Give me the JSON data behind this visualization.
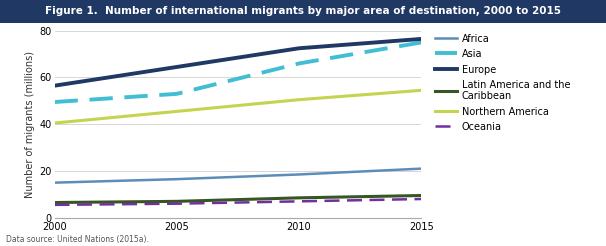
{
  "title": "Figure 1.  Number of international migrants by major area of destination, 2000 to 2015",
  "title_bg_color": "#1F3864",
  "title_text_color": "#FFFFFF",
  "ylabel": "Number of migrants (millions)",
  "footnote": "Data source: United Nations (2015a).",
  "xlim": [
    2000,
    2015
  ],
  "ylim": [
    0,
    80
  ],
  "yticks": [
    0,
    20,
    40,
    60,
    80
  ],
  "xticks": [
    2000,
    2005,
    2010,
    2015
  ],
  "years": [
    2000,
    2005,
    2010,
    2015
  ],
  "series": {
    "Africa": {
      "values": [
        15.0,
        16.5,
        18.5,
        21.0
      ],
      "color": "#5B8DB8",
      "linestyle": "solid",
      "linewidth": 1.8
    },
    "Asia": {
      "values": [
        49.5,
        53.0,
        66.0,
        75.0
      ],
      "color": "#41BED4",
      "linestyle": "dashed",
      "linewidth": 2.8,
      "dashes": [
        6,
        3
      ]
    },
    "Europe": {
      "values": [
        56.5,
        64.5,
        72.5,
        76.5
      ],
      "color": "#1F3864",
      "linestyle": "solid",
      "linewidth": 2.8
    },
    "Latin America and the\nCaribbean": {
      "values": [
        6.5,
        7.0,
        8.5,
        9.5
      ],
      "color": "#375623",
      "linestyle": "solid",
      "linewidth": 2.2
    },
    "Northern America": {
      "values": [
        40.5,
        45.5,
        50.5,
        54.5
      ],
      "color": "#C4D450",
      "linestyle": "solid",
      "linewidth": 2.2
    },
    "Oceania": {
      "values": [
        5.5,
        6.0,
        7.0,
        8.0
      ],
      "color": "#7030A0",
      "linestyle": "dashed",
      "linewidth": 1.8,
      "dashes": [
        6,
        3
      ]
    }
  },
  "legend_labels": [
    "Africa",
    "Asia",
    "Europe",
    "Latin America and the\nCaribbean",
    "Northern America",
    "Oceania"
  ],
  "bg_color": "#FFFFFF",
  "plot_bg_color": "#FFFFFF",
  "grid_color": "#D0D0D0",
  "font_size": 7,
  "title_font_size": 7.5
}
